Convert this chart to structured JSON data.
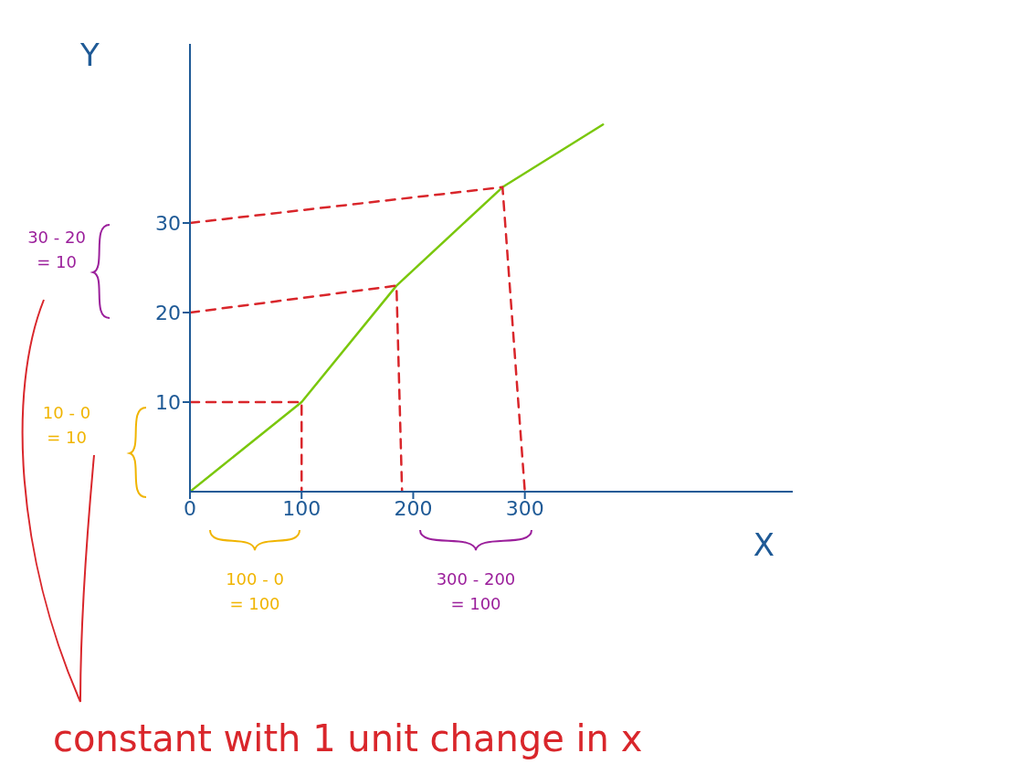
{
  "chart_data": {
    "type": "line",
    "xlabel": "X",
    "ylabel": "Y",
    "xlim": [
      0,
      540
    ],
    "ylim": [
      0,
      50
    ],
    "xticks": [
      0,
      100,
      200,
      300
    ],
    "yticks": [
      10,
      20,
      30
    ],
    "marker": "none",
    "series": [
      {
        "color": "#7ac70c",
        "x": [
          0,
          100,
          185,
          280,
          370
        ],
        "values": [
          0,
          10,
          23,
          34,
          41
        ]
      },
      {
        "color": "#d9262b",
        "line_style": "dashed",
        "x": [
          0,
          100,
          100
        ],
        "values": [
          10,
          10,
          0
        ]
      },
      {
        "color": "#d9262b",
        "line_style": "dashed",
        "x": [
          0,
          185,
          190
        ],
        "values": [
          20,
          23,
          0
        ]
      },
      {
        "color": "#d9262b",
        "line_style": "dashed",
        "x": [
          0,
          280,
          300
        ],
        "values": [
          30,
          34,
          0
        ]
      }
    ],
    "annotations": [
      "30 - 20 = 10",
      "10 - 0 = 10",
      "100 - 0 = 100",
      "300 - 200 = 100",
      "constant with 1 unit change in x"
    ]
  }
}
